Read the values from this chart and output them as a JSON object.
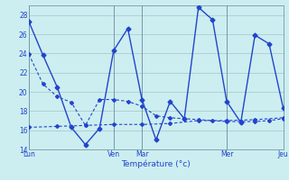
{
  "xlabel": "Température (°c)",
  "background_color": "#cceef0",
  "grid_color": "#aacccc",
  "line_color": "#2244cc",
  "ylim": [
    14,
    29
  ],
  "yticks": [
    14,
    16,
    18,
    20,
    22,
    24,
    26,
    28
  ],
  "xlim": [
    0,
    36
  ],
  "day_positions": [
    0,
    12,
    16,
    28,
    36
  ],
  "day_labels": [
    "Lun",
    "Ven",
    "Mar",
    "Mer",
    "Jeu"
  ],
  "line1_x": [
    0,
    2,
    4,
    6,
    8,
    10,
    12,
    14,
    16,
    18,
    20,
    22,
    24,
    26,
    28,
    30,
    32,
    34,
    36
  ],
  "line1_y": [
    27.3,
    23.8,
    20.5,
    16.3,
    14.5,
    16.2,
    24.3,
    26.6,
    19.2,
    15.0,
    19.0,
    17.2,
    28.8,
    27.5,
    19.0,
    16.8,
    25.9,
    25.0,
    18.3
  ],
  "line2_x": [
    0,
    2,
    4,
    6,
    8,
    10,
    12,
    14,
    16,
    18,
    20,
    22,
    24,
    26,
    28,
    30,
    32,
    34,
    36
  ],
  "line2_y": [
    23.9,
    20.8,
    19.5,
    18.9,
    16.5,
    19.2,
    19.2,
    19.0,
    18.5,
    17.5,
    17.3,
    17.2,
    17.1,
    17.0,
    16.9,
    16.9,
    16.9,
    17.0,
    17.2
  ],
  "line3_x": [
    0,
    4,
    8,
    12,
    16,
    20,
    24,
    28,
    32,
    36
  ],
  "line3_y": [
    16.3,
    16.4,
    16.5,
    16.6,
    16.6,
    16.7,
    17.0,
    17.0,
    17.1,
    17.3
  ]
}
